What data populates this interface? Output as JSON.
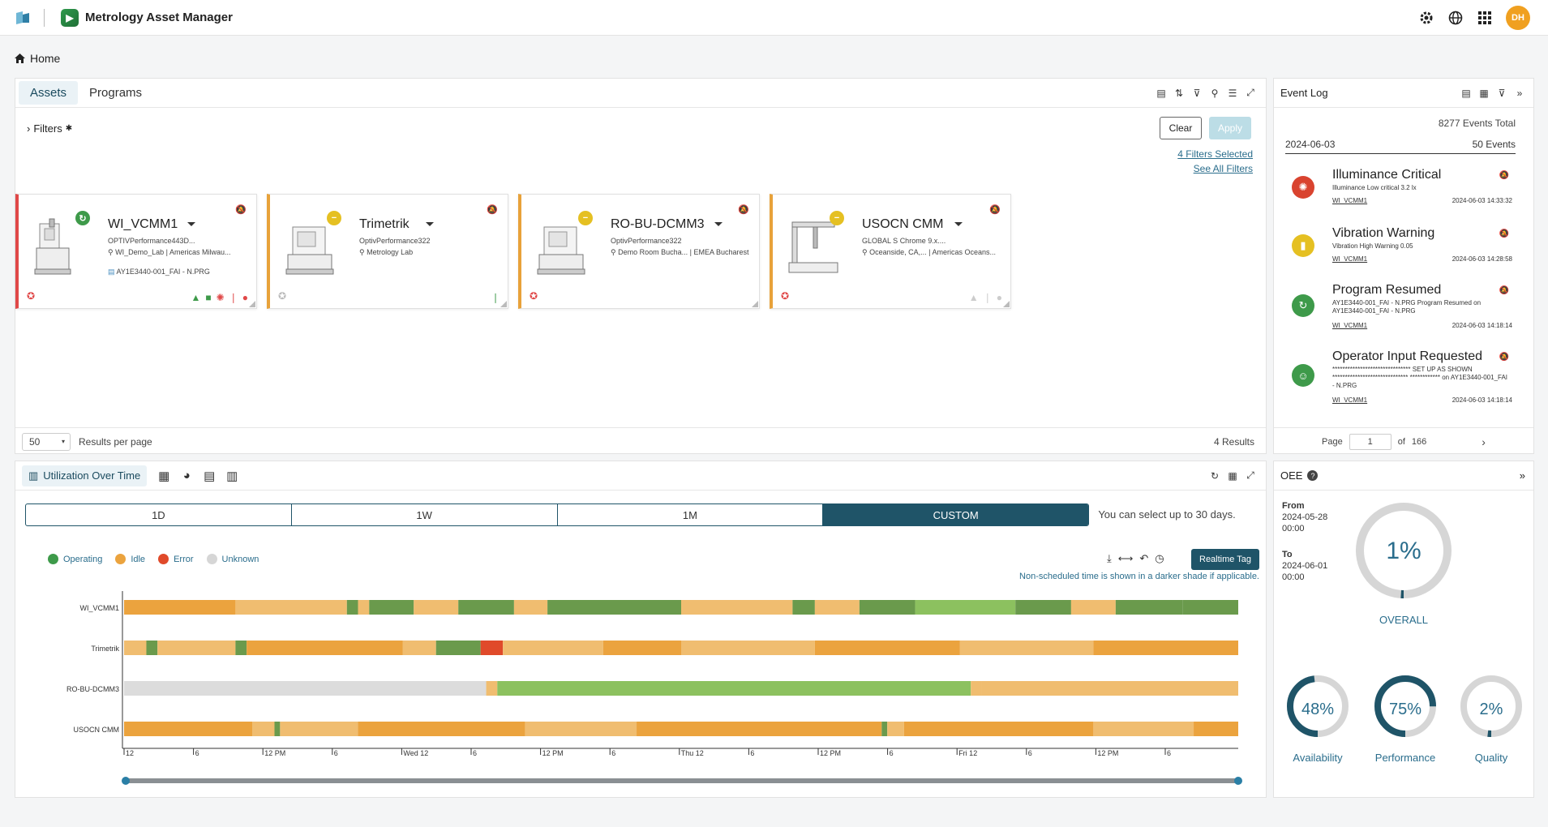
{
  "app": {
    "title": "Metrology Asset Manager",
    "avatar": "DH"
  },
  "breadcrumb": {
    "home": "Home"
  },
  "assets": {
    "tabs": [
      {
        "label": "Assets"
      },
      {
        "label": "Programs"
      }
    ],
    "filters_label": "Filters",
    "clear_label": "Clear",
    "apply_label": "Apply",
    "filters_selected": "4 Filters Selected",
    "see_all_filters": "See All Filters",
    "per_page": "50",
    "per_page_label": "Results per page",
    "results": "4 Results",
    "cards": [
      {
        "name": "WI_VCMM1",
        "sub": "OPTIVPerformance443D...",
        "location": "WI_Demo_Lab | Americas Milwau...",
        "program": "AY1E3440-001_FAI - N.PRG",
        "status": "operating"
      },
      {
        "name": "Trimetrik",
        "sub": "OptivPerformance322",
        "location": "Metrology Lab",
        "status": "idle"
      },
      {
        "name": "RO-BU-DCMM3",
        "sub": "OptivPerformance322",
        "location": "Demo Room Bucha... | EMEA Bucharest",
        "status": "idle"
      },
      {
        "name": "USOCN CMM",
        "sub": "GLOBAL S Chrome 9.x....",
        "location": "Oceanside, CA,... | Americas Oceans...",
        "status": "idle"
      }
    ]
  },
  "event_log": {
    "title": "Event Log",
    "total": "8277 Events Total",
    "date": "2024-06-03",
    "count": "50 Events",
    "events": [
      {
        "title": "Illuminance Critical",
        "desc": "Illuminance Low critical 3.2 lx",
        "asset": "WI_VCMM1",
        "time": "2024-06-03 14:33:32",
        "color": "#d9432f"
      },
      {
        "title": "Vibration Warning",
        "desc": "Vibration High Warning 0.05",
        "asset": "WI_VCMM1",
        "time": "2024-06-03 14:28:58",
        "color": "#e5c022"
      },
      {
        "title": "Program Resumed",
        "desc": "AY1E3440-001_FAI - N.PRG Program Resumed on AY1E3440-001_FAI - N.PRG",
        "asset": "WI_VCMM1",
        "time": "2024-06-03 14:18:14",
        "color": "#3e9a4a"
      },
      {
        "title": "Operator Input Requested",
        "desc": "******************************* SET UP AS SHOWN ****************************** ************ on AY1E3440-001_FAI - N.PRG",
        "asset": "WI_VCMM1",
        "time": "2024-06-03 14:18:14",
        "color": "#3e9a4a"
      }
    ],
    "page_label": "Page",
    "page": "1",
    "of_label": "of",
    "pages": "166"
  },
  "utilization": {
    "tab_label": "Utilization Over Time",
    "ranges": [
      "1D",
      "1W",
      "1M",
      "CUSTOM"
    ],
    "range_note": "You can select up to 30 days.",
    "legend": [
      {
        "label": "Operating",
        "color": "#3e9a4a"
      },
      {
        "label": "Idle",
        "color": "#eba33e"
      },
      {
        "label": "Error",
        "color": "#e04a2a"
      },
      {
        "label": "Unknown",
        "color": "#d6d6d6"
      }
    ],
    "realtime_label": "Realtime Tag",
    "nonsched_note": "Non-scheduled time is shown in a darker shade if applicable.",
    "rows": [
      "WI_VCMM1",
      "Trimetrik",
      "RO-BU-DCMM3",
      "USOCN CMM"
    ],
    "ticks": [
      "12",
      "6",
      "12 PM",
      "6",
      "Wed 12",
      "6",
      "12 PM",
      "6",
      "Thu 12",
      "6",
      "12 PM",
      "6",
      "Fri 12",
      "6",
      "12 PM",
      "6"
    ]
  },
  "oee": {
    "title": "OEE",
    "from_label": "From",
    "from_date": "2024-05-28",
    "from_time": "00:00",
    "to_label": "To",
    "to_date": "2024-06-01",
    "to_time": "00:00",
    "overall": {
      "label": "OVERALL",
      "value": "1%",
      "fraction": 0.01
    },
    "availability": {
      "label": "Availability",
      "value": "48%",
      "fraction": 0.48
    },
    "performance": {
      "label": "Performance",
      "value": "75%",
      "fraction": 0.75
    },
    "quality": {
      "label": "Quality",
      "value": "2%",
      "fraction": 0.02
    }
  }
}
